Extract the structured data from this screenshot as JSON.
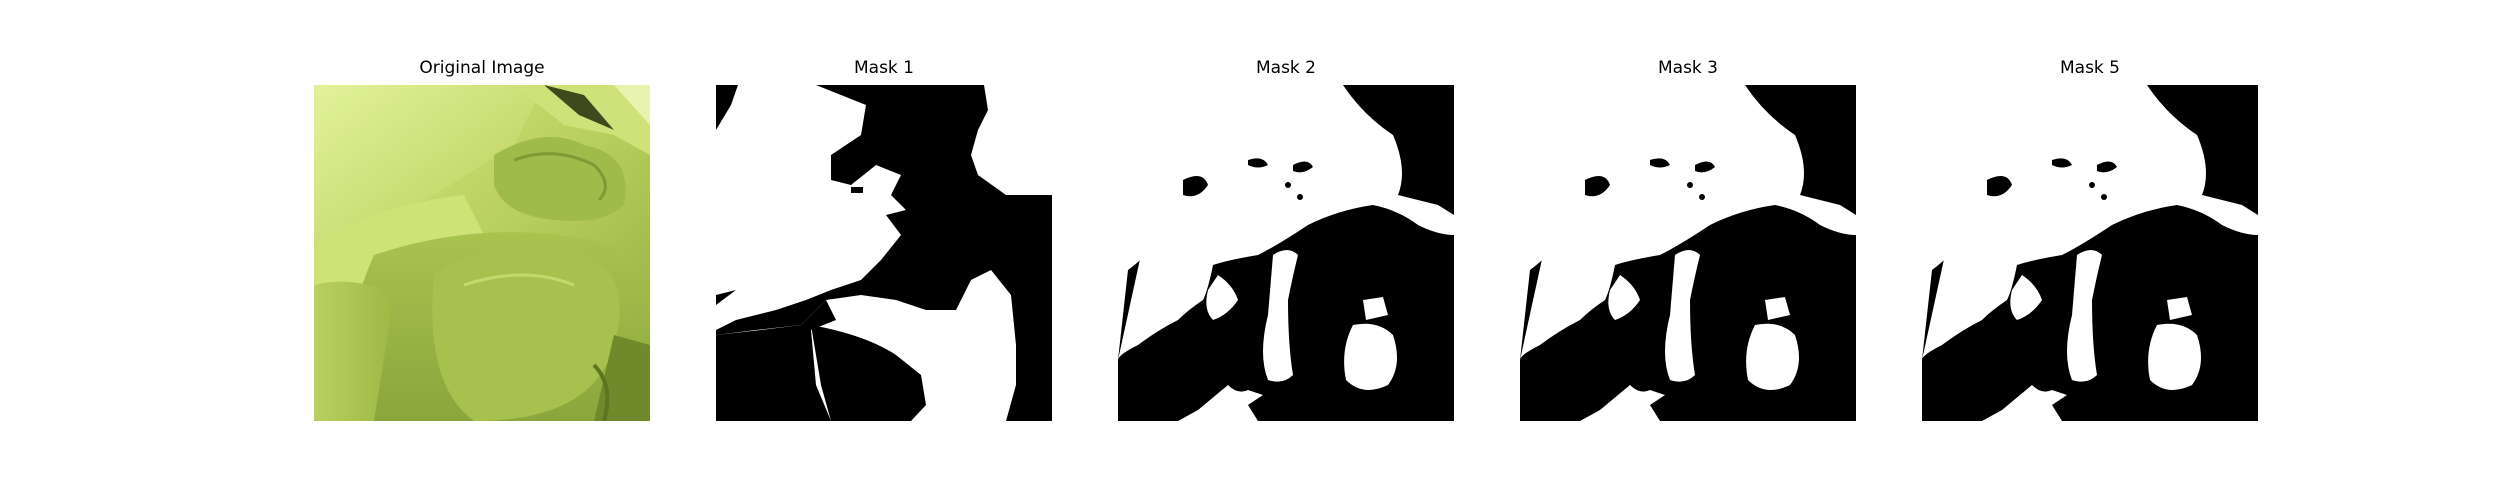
{
  "figure": {
    "panels": [
      {
        "id": "original",
        "title": "Original Image",
        "content": "photo"
      },
      {
        "id": "mask1",
        "title": "Mask 1",
        "content": "binary-mask"
      },
      {
        "id": "mask2",
        "title": "Mask 2",
        "content": "binary-mask"
      },
      {
        "id": "mask3",
        "title": "Mask 3",
        "content": "binary-mask"
      },
      {
        "id": "mask5",
        "title": "Mask 5",
        "content": "binary-mask"
      }
    ]
  },
  "colors": {
    "background": "#ffffff",
    "mask_foreground": "#ffffff",
    "mask_background": "#000000",
    "leaf_light": "#c8e070",
    "leaf_mid": "#a8c24a",
    "leaf_dark": "#7f9a34"
  }
}
